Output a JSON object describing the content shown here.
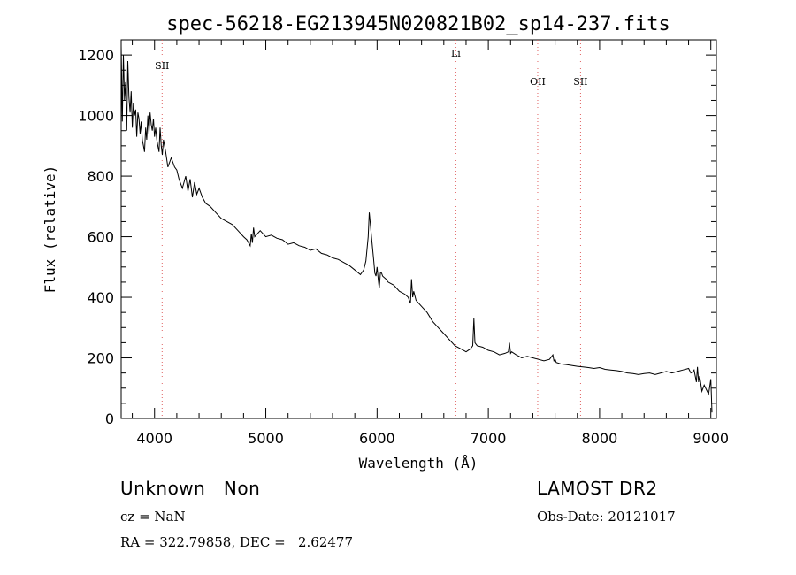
{
  "chart_data": {
    "type": "line",
    "title": "spec-56218-EG213945N020821B02_sp14-237.fits",
    "xlabel": "Wavelength (Å)",
    "ylabel": "Flux (relative)",
    "xlim": [
      3700,
      9050
    ],
    "ylim": [
      0,
      1250
    ],
    "xticks": [
      "4000",
      "5000",
      "6000",
      "7000",
      "8000",
      "9000"
    ],
    "yticks": [
      "0",
      "200",
      "400",
      "600",
      "800",
      "1000",
      "1200"
    ],
    "grid": false,
    "line_markers": [
      {
        "label": "SII",
        "x": 4068
      },
      {
        "label": "Li",
        "x": 6708
      },
      {
        "label": "OII",
        "x": 7444
      },
      {
        "label": "SII",
        "x": 7829
      }
    ],
    "series": [
      {
        "x": [
          3700,
          3710,
          3720,
          3730,
          3740,
          3750,
          3760,
          3770,
          3780,
          3790,
          3800,
          3810,
          3820,
          3830,
          3840,
          3850,
          3860,
          3870,
          3880,
          3890,
          3900,
          3910,
          3920,
          3930,
          3940,
          3950,
          3960,
          3970,
          3980,
          3990,
          4000,
          4010,
          4020,
          4030,
          4040,
          4050,
          4060,
          4070,
          4080,
          4100,
          4120,
          4150,
          4180,
          4200,
          4220,
          4250,
          4280,
          4300,
          4320,
          4340,
          4360,
          4380,
          4400,
          4430,
          4460,
          4500,
          4550,
          4600,
          4650,
          4700,
          4750,
          4800,
          4830,
          4860,
          4870,
          4880,
          4890,
          4900,
          4950,
          5000,
          5050,
          5100,
          5150,
          5200,
          5250,
          5300,
          5350,
          5400,
          5450,
          5500,
          5550,
          5600,
          5650,
          5700,
          5750,
          5800,
          5850,
          5880,
          5900,
          5910,
          5920,
          5930,
          5940,
          5950,
          5960,
          5970,
          5980,
          5990,
          6000,
          6010,
          6020,
          6030,
          6040,
          6050,
          6080,
          6100,
          6150,
          6200,
          6250,
          6280,
          6300,
          6310,
          6320,
          6330,
          6350,
          6400,
          6450,
          6500,
          6550,
          6600,
          6650,
          6700,
          6750,
          6800,
          6840,
          6850,
          6860,
          6870,
          6880,
          6900,
          6950,
          7000,
          7050,
          7100,
          7150,
          7180,
          7190,
          7200,
          7210,
          7250,
          7300,
          7350,
          7400,
          7450,
          7500,
          7550,
          7580,
          7590,
          7600,
          7610,
          7650,
          7700,
          7750,
          7800,
          7850,
          7900,
          7950,
          8000,
          8050,
          8100,
          8150,
          8200,
          8250,
          8300,
          8350,
          8400,
          8450,
          8500,
          8550,
          8600,
          8650,
          8700,
          8750,
          8800,
          8820,
          8840,
          8850,
          8860,
          8870,
          8880,
          8890,
          8900,
          8920,
          8940,
          8960,
          8980,
          9000,
          9010
        ],
        "values": [
          1230,
          980,
          1200,
          1050,
          1110,
          950,
          1180,
          1060,
          1010,
          1080,
          960,
          1040,
          1000,
          1020,
          930,
          1010,
          990,
          940,
          980,
          920,
          900,
          880,
          960,
          920,
          1000,
          940,
          1010,
          970,
          950,
          990,
          930,
          960,
          920,
          900,
          880,
          960,
          900,
          870,
          920,
          880,
          830,
          860,
          830,
          820,
          790,
          760,
          800,
          750,
          790,
          730,
          780,
          740,
          760,
          730,
          710,
          700,
          680,
          660,
          650,
          640,
          620,
          600,
          590,
          570,
          610,
          580,
          630,
          600,
          620,
          600,
          605,
          595,
          590,
          575,
          580,
          570,
          565,
          555,
          560,
          545,
          540,
          530,
          525,
          515,
          505,
          490,
          475,
          490,
          520,
          560,
          600,
          680,
          640,
          600,
          560,
          520,
          480,
          470,
          500,
          460,
          430,
          480,
          480,
          470,
          460,
          450,
          440,
          420,
          410,
          400,
          380,
          460,
          400,
          420,
          390,
          370,
          350,
          320,
          300,
          280,
          260,
          240,
          230,
          220,
          230,
          235,
          240,
          330,
          250,
          240,
          235,
          225,
          220,
          210,
          215,
          220,
          250,
          215,
          220,
          210,
          200,
          205,
          200,
          195,
          190,
          195,
          210,
          190,
          195,
          185,
          180,
          178,
          175,
          172,
          170,
          168,
          165,
          168,
          162,
          160,
          158,
          155,
          150,
          148,
          145,
          148,
          150,
          145,
          150,
          155,
          150,
          155,
          160,
          165,
          150,
          155,
          160,
          140,
          120,
          170,
          120,
          140,
          90,
          110,
          95,
          80,
          130,
          20
        ]
      }
    ]
  },
  "info": {
    "class_text": "Unknown   Non",
    "cz_text": "cz = NaN",
    "radec_text": "RA = 322.79858, DEC =   2.62477",
    "survey_text": "LAMOST DR2",
    "obsdate_text": "Obs-Date: 20121017"
  }
}
